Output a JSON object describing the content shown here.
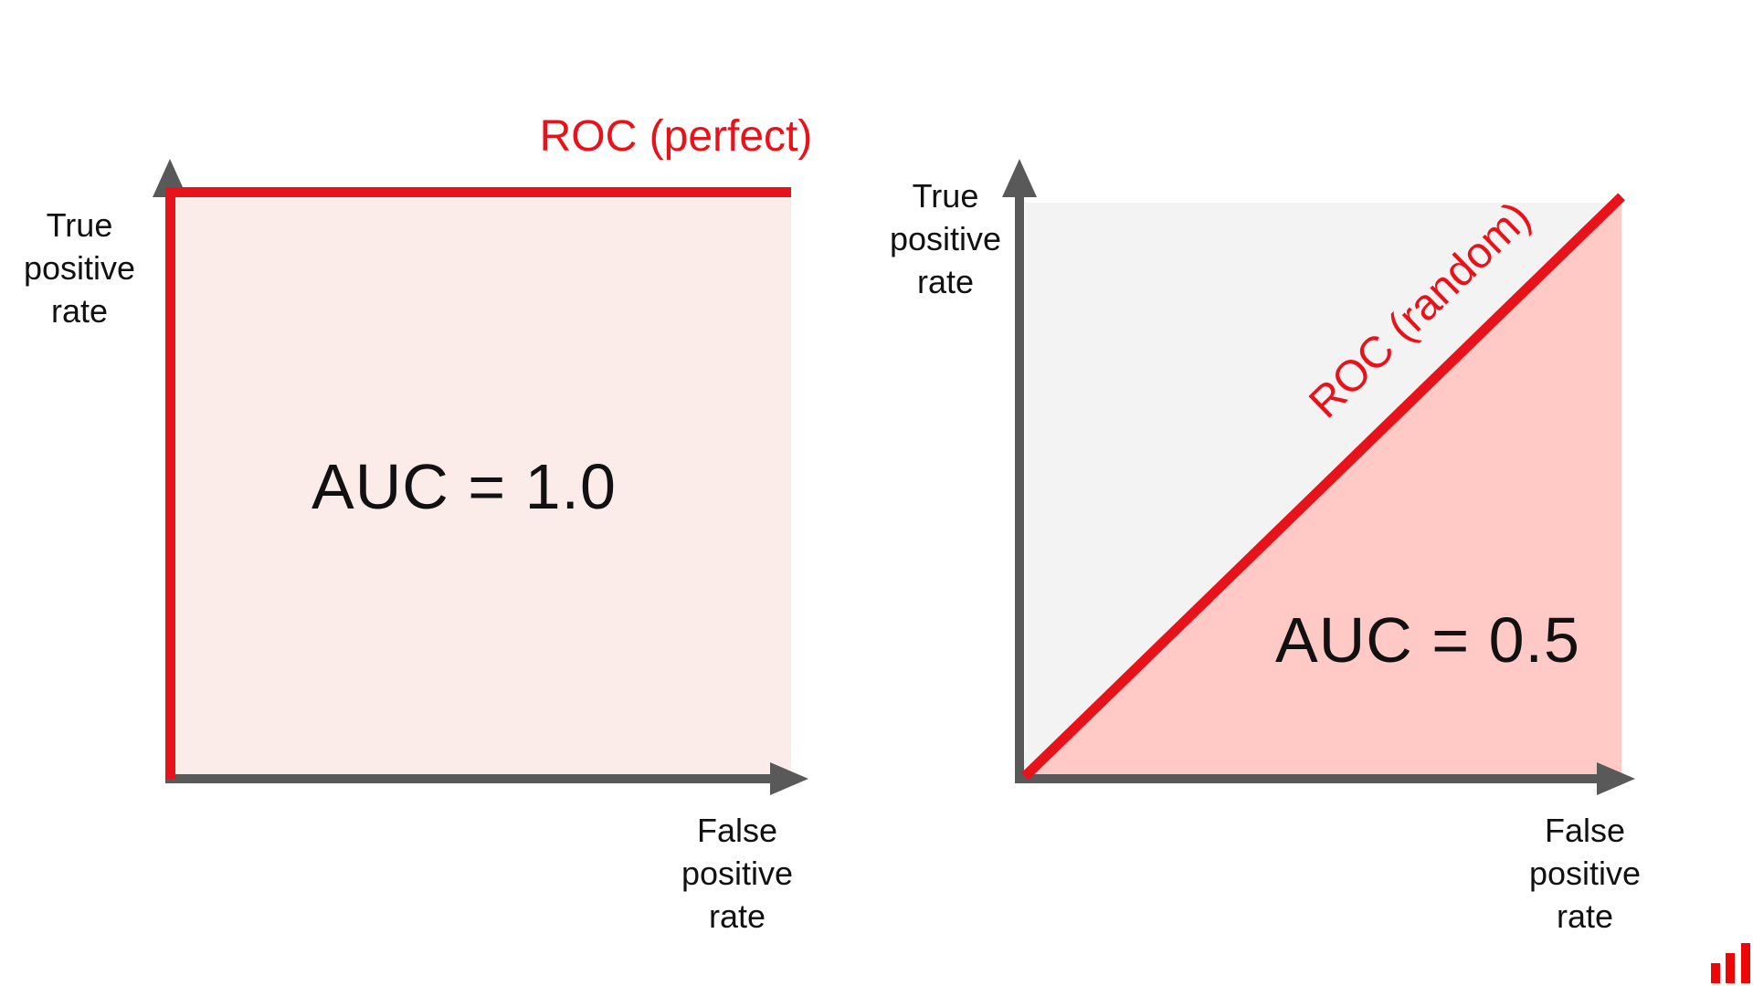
{
  "colors": {
    "curve_red": "#e8131a",
    "axis_gray": "#595959",
    "text_black": "#111111",
    "perfect_area_fill": "#fcece9",
    "random_area_above_fill": "#f3f3f3",
    "random_area_below_fill": "#ffc9c6",
    "logo_red": "#ee0505"
  },
  "charts": [
    {
      "curve_label": "ROC (perfect)",
      "auc_label": "AUC = 1.0",
      "y_axis_label": "True positive rate",
      "x_axis_label": "False positive rate"
    },
    {
      "curve_label": "ROC (random)",
      "auc_label": "AUC = 0.5",
      "y_axis_label": "True positive rate",
      "x_axis_label": "False positive rate"
    }
  ],
  "logo": {
    "icon": "bar-chart-logo"
  },
  "chart_data": [
    {
      "type": "line",
      "title": "ROC (perfect)",
      "xlabel": "False positive rate",
      "ylabel": "True positive rate",
      "series": [
        {
          "name": "ROC (perfect)",
          "x": [
            0,
            0,
            1
          ],
          "y": [
            0,
            1,
            1
          ]
        }
      ],
      "annotations": [
        "AUC = 1.0"
      ],
      "auc": 1.0,
      "xlim": [
        0,
        1
      ],
      "ylim": [
        0,
        1
      ],
      "grid": false,
      "legend_position": "top",
      "area_fill": "under curve"
    },
    {
      "type": "line",
      "title": "ROC (random)",
      "xlabel": "False positive rate",
      "ylabel": "True positive rate",
      "series": [
        {
          "name": "ROC (random)",
          "x": [
            0,
            1
          ],
          "y": [
            0,
            1
          ]
        }
      ],
      "annotations": [
        "AUC = 0.5"
      ],
      "auc": 0.5,
      "xlim": [
        0,
        1
      ],
      "ylim": [
        0,
        1
      ],
      "grid": false,
      "legend_position": "along diagonal",
      "area_fill": "under diagonal highlighted, above diagonal gray"
    }
  ]
}
